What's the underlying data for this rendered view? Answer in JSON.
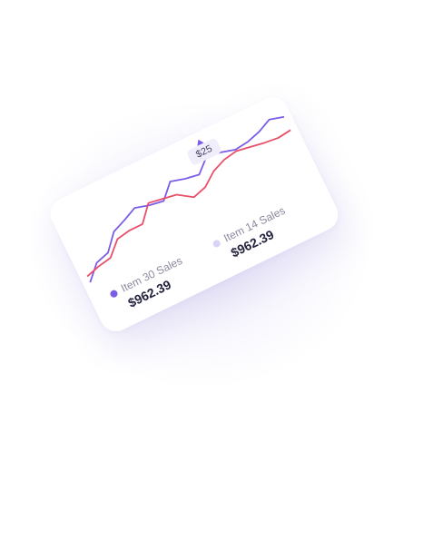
{
  "chart_data": {
    "type": "line",
    "x": [
      1,
      2,
      3,
      4,
      5,
      6,
      7,
      8,
      9,
      10,
      11,
      12,
      13,
      14,
      15,
      16,
      17,
      18
    ],
    "ylim": [
      0,
      100
    ],
    "grid": false,
    "series": [
      {
        "name": "Item 30 Sales",
        "color": "#7b5ce6",
        "values": [
          12,
          30,
          35,
          55,
          62,
          70,
          65,
          62,
          80,
          75,
          72,
          88,
          85,
          80,
          82,
          87,
          95,
          90
        ]
      },
      {
        "name": "Item 14 Sales",
        "color": "#e8506a",
        "values": [
          20,
          25,
          28,
          45,
          48,
          48,
          68,
          65,
          62,
          50,
          55,
          68,
          75,
          78,
          75,
          72,
          70,
          72
        ]
      }
    ],
    "tooltip": {
      "label": "$25"
    }
  },
  "legend": [
    {
      "label": "Item 30 Sales",
      "value": "$962.39",
      "color": "#7b5ce6"
    },
    {
      "label": "Item 14 Sales",
      "value": "$962.39",
      "color": "#d9d4f7"
    }
  ]
}
